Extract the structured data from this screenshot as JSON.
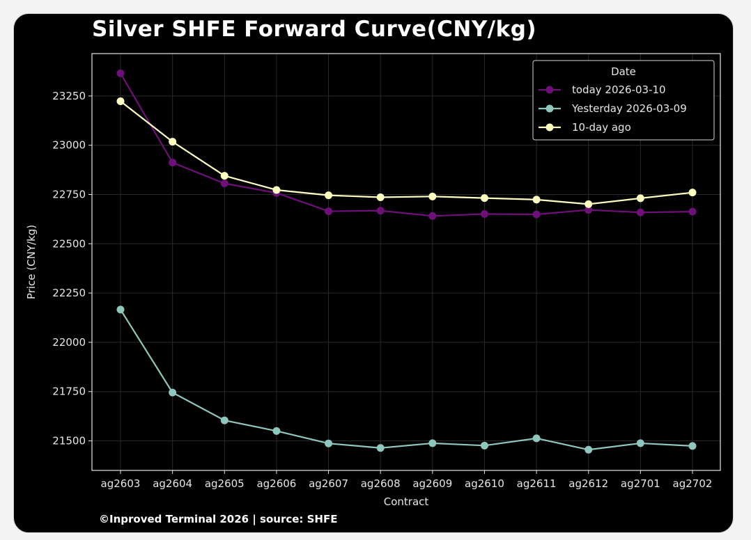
{
  "title": "Silver SHFE Forward Curve(CNY/kg)",
  "footer": "©Inproved Terminal 2026 | source: SHFE",
  "chart_data": {
    "type": "line",
    "title": "Silver SHFE Forward Curve(CNY/kg)",
    "xlabel": "Contract",
    "ylabel": "Price (CNY/kg)",
    "categories": [
      "ag2603",
      "ag2604",
      "ag2605",
      "ag2606",
      "ag2607",
      "ag2608",
      "ag2609",
      "ag2610",
      "ag2611",
      "ag2612",
      "ag2701",
      "ag2702"
    ],
    "ylim": [
      21350,
      23465
    ],
    "yticks": [
      21500,
      21750,
      22000,
      22250,
      22500,
      22750,
      23000,
      23250
    ],
    "grid": true,
    "legend": {
      "title": "Date",
      "placement": "top-right"
    },
    "series": [
      {
        "name": "today 2026-03-10",
        "color": "#6e0f7a",
        "values": [
          23365,
          22912,
          22806,
          22758,
          22665,
          22668,
          22641,
          22651,
          22649,
          22672,
          22659,
          22663
        ]
      },
      {
        "name": "Yesterday 2026-03-09",
        "color": "#8fc6be",
        "values": [
          22166,
          21745,
          21604,
          21550,
          21487,
          21464,
          21488,
          21476,
          21513,
          21455,
          21488,
          21474
        ]
      },
      {
        "name": "10-day ago",
        "color": "#ffffc2",
        "values": [
          23223,
          23018,
          22845,
          22773,
          22746,
          22736,
          22740,
          22732,
          22724,
          22701,
          22731,
          22760
        ]
      }
    ]
  }
}
